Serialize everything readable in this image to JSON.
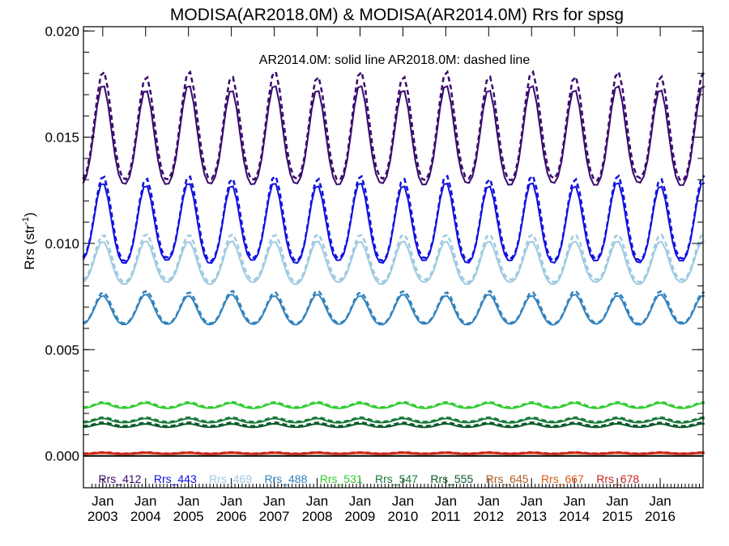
{
  "chart_data": {
    "type": "line",
    "title": "MODISA(AR2018.0M) & MODISA(AR2014.0M)  Rrs for spsg",
    "subtitle": "AR2014.0M: solid line   AR2018.0M: dashed line",
    "ylabel_main": "Rrs (str",
    "ylabel_sup": "-1",
    "ylabel_tail": ")",
    "ylim": [
      -0.0015,
      0.0202
    ],
    "y_ticks": [
      {
        "value": 0.0,
        "label": "0.000"
      },
      {
        "value": 0.005,
        "label": "0.005"
      },
      {
        "value": 0.01,
        "label": "0.010"
      },
      {
        "value": 0.015,
        "label": "0.015"
      },
      {
        "value": 0.02,
        "label": "0.020"
      }
    ],
    "xlim": [
      2002.55,
      2017.0
    ],
    "x_ticks": [
      {
        "value": 2003.0,
        "month": "Jan",
        "year": "2003"
      },
      {
        "value": 2004.0,
        "month": "Jan",
        "year": "2004"
      },
      {
        "value": 2005.0,
        "month": "Jan",
        "year": "2005"
      },
      {
        "value": 2006.0,
        "month": "Jan",
        "year": "2006"
      },
      {
        "value": 2007.0,
        "month": "Jan",
        "year": "2007"
      },
      {
        "value": 2008.0,
        "month": "Jan",
        "year": "2008"
      },
      {
        "value": 2009.0,
        "month": "Jan",
        "year": "2009"
      },
      {
        "value": 2010.0,
        "month": "Jan",
        "year": "2010"
      },
      {
        "value": 2011.0,
        "month": "Jan",
        "year": "2011"
      },
      {
        "value": 2012.0,
        "month": "Jan",
        "year": "2012"
      },
      {
        "value": 2013.0,
        "month": "Jan",
        "year": "2013"
      },
      {
        "value": 2014.0,
        "month": "Jan",
        "year": "2014"
      },
      {
        "value": 2015.0,
        "month": "Jan",
        "year": "2015"
      },
      {
        "value": 2016.0,
        "month": "Jan",
        "year": "2016"
      }
    ],
    "time_start": 2002.54,
    "time_step": 0.0833,
    "zero_line": 0.0,
    "series": [
      {
        "name": "Rrs_412",
        "color": "#3a0a6e",
        "solid_mean": 0.0148,
        "solid_amp": 0.0023,
        "dash_mean": 0.0152,
        "dash_amp": 0.0025
      },
      {
        "name": "Rrs_443",
        "color": "#1010e0",
        "solid_mean": 0.01075,
        "solid_amp": 0.00185,
        "dash_mean": 0.01095,
        "dash_amp": 0.00195
      },
      {
        "name": "Rrs_469",
        "color": "#9ecae1",
        "solid_mean": 0.009,
        "solid_amp": 0.001,
        "dash_mean": 0.0092,
        "dash_amp": 0.0011
      },
      {
        "name": "Rrs_488",
        "color": "#3182bd",
        "solid_mean": 0.0068,
        "solid_amp": 0.0007,
        "dash_mean": 0.0069,
        "dash_amp": 0.00075
      },
      {
        "name": "Rrs_531",
        "color": "#33cc33",
        "solid_mean": 0.00235,
        "solid_amp": 0.00012,
        "dash_mean": 0.0024,
        "dash_amp": 0.00012
      },
      {
        "name": "Rrs_547",
        "color": "#1a7a3a",
        "solid_mean": 0.00165,
        "solid_amp": 0.0001,
        "dash_mean": 0.0017,
        "dash_amp": 0.0001
      },
      {
        "name": "Rrs_555",
        "color": "#0c5a2a",
        "solid_mean": 0.00142,
        "solid_amp": 8e-05,
        "dash_mean": 0.00148,
        "dash_amp": 8e-05
      },
      {
        "name": "Rrs_645",
        "color": "#b05a20",
        "solid_mean": 0.00012,
        "solid_amp": 2e-05,
        "dash_mean": 0.00013,
        "dash_amp": 2e-05
      },
      {
        "name": "Rrs_667",
        "color": "#e05a10",
        "solid_mean": 0.0001,
        "solid_amp": 2e-05,
        "dash_mean": 0.00011,
        "dash_amp": 2e-05
      },
      {
        "name": "Rrs_678",
        "color": "#cc2020",
        "solid_mean": 0.00013,
        "solid_amp": 3e-05,
        "dash_mean": 0.00014,
        "dash_amp": 3e-05
      }
    ]
  }
}
